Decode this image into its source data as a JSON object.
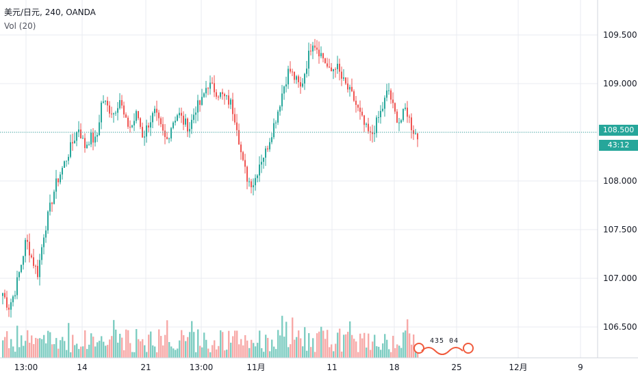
{
  "legend": {
    "symbol": "美元/日元",
    "interval": "240",
    "source": "OANDA",
    "volume_label": "Vol (20)"
  },
  "price_axis": {
    "labels": [
      "109.500",
      "109.000",
      "108.500",
      "108.000",
      "107.500",
      "107.000",
      "106.500"
    ],
    "current_price": "108.500",
    "countdown": "43:12"
  },
  "time_axis": {
    "labels": [
      "13:00",
      "14",
      "21",
      "13:00",
      "11月",
      "11",
      "18",
      "25",
      "12月",
      "9"
    ]
  },
  "watermark": {
    "text": "435 04"
  },
  "colors": {
    "up": "#26a69a",
    "down": "#ef5350",
    "up_volume": "#7ecdc2",
    "down_volume": "#f7a9a7",
    "grid": "#e8ebf0",
    "price_line": "#26a69a"
  },
  "chart_data": {
    "type": "candlestick",
    "title": "",
    "ylim": [
      106.25,
      109.9
    ],
    "current_price": 108.5,
    "series_path": [
      106.85,
      106.7,
      106.85,
      107.1,
      107.4,
      107.2,
      107.05,
      107.45,
      107.7,
      107.95,
      108.1,
      108.25,
      108.4,
      108.55,
      108.35,
      108.45,
      108.4,
      108.85,
      108.75,
      108.7,
      108.85,
      108.6,
      108.55,
      108.7,
      108.45,
      108.6,
      108.7,
      108.55,
      108.4,
      108.6,
      108.7,
      108.6,
      108.55,
      108.75,
      108.8,
      109.0,
      108.95,
      108.9,
      108.85,
      108.8,
      108.6,
      108.2,
      108.0,
      107.98,
      108.2,
      108.3,
      108.5,
      108.7,
      108.95,
      109.15,
      109.05,
      108.95,
      109.2,
      109.45,
      109.35,
      109.25,
      109.1,
      109.2,
      109.05,
      108.95,
      108.85,
      108.7,
      108.55,
      108.45,
      108.6,
      108.75,
      108.95,
      108.7,
      108.6,
      108.75,
      108.55,
      108.45
    ]
  }
}
